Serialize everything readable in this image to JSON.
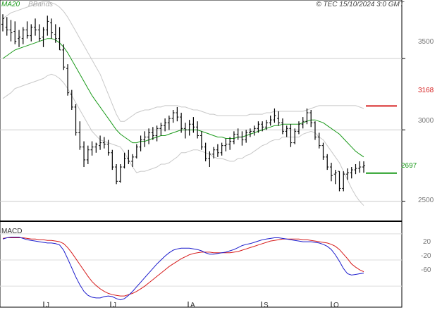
{
  "header": {
    "ma_label": "MA20",
    "bb_label": "BBands",
    "copyright": "© TEC 15/10/2024 3:0 GMT"
  },
  "chart_data": [
    {
      "type": "line",
      "title": "",
      "ylim": [
        2370,
        3900
      ],
      "y_ticks": [
        "3500",
        "3000",
        "2500"
      ],
      "x_tick_labels": [
        "J",
        "J",
        "A",
        "S",
        "O"
      ],
      "grid": true,
      "legend_position": "top-left",
      "levels": [
        {
          "label": "3168",
          "value": 3168,
          "color": "#d62020"
        },
        {
          "label": "2697",
          "value": 2697,
          "color": "#1a9a1a"
        }
      ],
      "price_bars": [
        [
          3740,
          3810,
          3690,
          3780
        ],
        [
          3720,
          3790,
          3660,
          3700
        ],
        [
          3700,
          3770,
          3620,
          3680
        ],
        [
          3690,
          3760,
          3600,
          3620
        ],
        [
          3640,
          3700,
          3580,
          3650
        ],
        [
          3640,
          3720,
          3600,
          3700
        ],
        [
          3700,
          3760,
          3640,
          3660
        ],
        [
          3660,
          3740,
          3620,
          3720
        ],
        [
          3720,
          3780,
          3660,
          3700
        ],
        [
          3700,
          3740,
          3620,
          3640
        ],
        [
          3650,
          3720,
          3580,
          3700
        ],
        [
          3700,
          3800,
          3660,
          3760
        ],
        [
          3750,
          3780,
          3640,
          3680
        ],
        [
          3670,
          3740,
          3610,
          3640
        ],
        [
          3640,
          3720,
          3560,
          3560
        ],
        [
          3560,
          3600,
          3420,
          3440
        ],
        [
          3430,
          3460,
          3240,
          3260
        ],
        [
          3250,
          3280,
          3140,
          3160
        ],
        [
          3160,
          3180,
          2960,
          2980
        ],
        [
          2980,
          3060,
          2860,
          2880
        ],
        [
          2880,
          2920,
          2740,
          2790
        ],
        [
          2790,
          2890,
          2760,
          2860
        ],
        [
          2860,
          2920,
          2820,
          2880
        ],
        [
          2880,
          2910,
          2840,
          2900
        ],
        [
          2890,
          2960,
          2860,
          2910
        ],
        [
          2910,
          2950,
          2870,
          2900
        ],
        [
          2900,
          2930,
          2820,
          2840
        ],
        [
          2840,
          2860,
          2720,
          2740
        ],
        [
          2740,
          2760,
          2620,
          2640
        ],
        [
          2640,
          2760,
          2630,
          2740
        ],
        [
          2740,
          2840,
          2730,
          2800
        ],
        [
          2800,
          2860,
          2760,
          2780
        ],
        [
          2780,
          2830,
          2740,
          2810
        ],
        [
          2810,
          2900,
          2800,
          2880
        ],
        [
          2880,
          2960,
          2850,
          2930
        ],
        [
          2930,
          2990,
          2880,
          2950
        ],
        [
          2950,
          3010,
          2900,
          2980
        ],
        [
          2980,
          3020,
          2930,
          2960
        ],
        [
          2960,
          3030,
          2920,
          3010
        ],
        [
          3010,
          3050,
          2960,
          3030
        ],
        [
          3030,
          3080,
          2990,
          3050
        ],
        [
          3050,
          3100,
          3000,
          3080
        ],
        [
          3080,
          3140,
          3050,
          3120
        ],
        [
          3120,
          3160,
          3060,
          3090
        ],
        [
          3090,
          3120,
          2980,
          3010
        ],
        [
          3010,
          3050,
          2940,
          3000
        ],
        [
          3000,
          3070,
          2960,
          3040
        ],
        [
          3040,
          3090,
          2980,
          3020
        ],
        [
          3020,
          3060,
          2940,
          2960
        ],
        [
          2960,
          2990,
          2860,
          2880
        ],
        [
          2880,
          2910,
          2780,
          2800
        ],
        [
          2800,
          2850,
          2740,
          2830
        ],
        [
          2830,
          2880,
          2800,
          2860
        ],
        [
          2860,
          2900,
          2810,
          2840
        ],
        [
          2840,
          2910,
          2820,
          2890
        ],
        [
          2890,
          2940,
          2850,
          2900
        ],
        [
          2900,
          2950,
          2860,
          2920
        ],
        [
          2920,
          2990,
          2900,
          2970
        ],
        [
          2970,
          3010,
          2930,
          2950
        ],
        [
          2950,
          2990,
          2890,
          2930
        ],
        [
          2930,
          3000,
          2910,
          2980
        ],
        [
          2980,
          3010,
          2950,
          2990
        ],
        [
          2990,
          3030,
          2960,
          3010
        ],
        [
          3010,
          3060,
          2980,
          3040
        ],
        [
          3040,
          3060,
          2990,
          3020
        ],
        [
          3020,
          3070,
          3000,
          3050
        ],
        [
          3050,
          3100,
          3030,
          3070
        ],
        [
          3070,
          3150,
          3050,
          3100
        ],
        [
          3080,
          3130,
          3030,
          3050
        ],
        [
          3050,
          3080,
          2970,
          2990
        ],
        [
          2990,
          3030,
          2950,
          3010
        ],
        [
          3010,
          3040,
          2880,
          2910
        ],
        [
          2910,
          3010,
          2900,
          2990
        ],
        [
          2990,
          3060,
          2970,
          3040
        ],
        [
          3040,
          3090,
          3010,
          3060
        ],
        [
          3060,
          3150,
          3040,
          3120
        ],
        [
          3120,
          3140,
          3020,
          3050
        ],
        [
          3050,
          3060,
          2930,
          2950
        ],
        [
          2950,
          2980,
          2870,
          2890
        ],
        [
          2890,
          2910,
          2790,
          2810
        ],
        [
          2810,
          2830,
          2720,
          2740
        ],
        [
          2740,
          2770,
          2640,
          2680
        ],
        [
          2690,
          2720,
          2620,
          2700
        ],
        [
          2710,
          2710,
          2570,
          2590
        ],
        [
          2590,
          2710,
          2570,
          2690
        ],
        [
          2690,
          2730,
          2650,
          2700
        ],
        [
          2700,
          2740,
          2660,
          2720
        ],
        [
          2720,
          2760,
          2690,
          2730
        ],
        [
          2730,
          2780,
          2700,
          2740
        ],
        [
          2740,
          2780,
          2700,
          2750
        ]
      ],
      "ma20": [
        3500,
        3520,
        3540,
        3560,
        3570,
        3580,
        3590,
        3600,
        3610,
        3620,
        3630,
        3640,
        3640,
        3630,
        3610,
        3580,
        3540,
        3490,
        3440,
        3390,
        3340,
        3290,
        3240,
        3200,
        3160,
        3120,
        3080,
        3040,
        3000,
        2970,
        2950,
        2930,
        2910,
        2910,
        2920,
        2920,
        2930,
        2940,
        2950,
        2960,
        2960,
        2970,
        2980,
        2990,
        3000,
        3000,
        3000,
        3000,
        3000,
        2990,
        2980,
        2970,
        2960,
        2950,
        2950,
        2940,
        2940,
        2940,
        2950,
        2950,
        2960,
        2970,
        2980,
        2990,
        3000,
        3010,
        3020,
        3030,
        3030,
        3040,
        3040,
        3040,
        3040,
        3040,
        3050,
        3060,
        3070,
        3070,
        3060,
        3050,
        3030,
        3010,
        2990,
        2970,
        2940,
        2910,
        2880,
        2850,
        2830,
        2810
      ],
      "bb_upper": [
        3780,
        3800,
        3820,
        3830,
        3840,
        3850,
        3860,
        3870,
        3880,
        3890,
        3900,
        3900,
        3890,
        3880,
        3860,
        3830,
        3790,
        3740,
        3690,
        3640,
        3590,
        3540,
        3490,
        3440,
        3390,
        3320,
        3250,
        3180,
        3110,
        3060,
        3060,
        3080,
        3100,
        3120,
        3130,
        3140,
        3140,
        3150,
        3160,
        3160,
        3170,
        3170,
        3170,
        3170,
        3160,
        3160,
        3150,
        3140,
        3140,
        3130,
        3120,
        3110,
        3110,
        3100,
        3100,
        3100,
        3100,
        3100,
        3100,
        3100,
        3100,
        3110,
        3110,
        3110,
        3110,
        3120,
        3120,
        3130,
        3130,
        3130,
        3130,
        3130,
        3130,
        3130,
        3130,
        3140,
        3150,
        3160,
        3170,
        3170,
        3170,
        3170,
        3170,
        3170,
        3170,
        3170,
        3170,
        3170,
        3160,
        3150
      ],
      "bb_lower": [
        3220,
        3240,
        3260,
        3290,
        3300,
        3310,
        3320,
        3330,
        3340,
        3350,
        3360,
        3380,
        3390,
        3380,
        3360,
        3330,
        3290,
        3240,
        3190,
        3140,
        3090,
        3040,
        2990,
        2960,
        2930,
        2920,
        2910,
        2900,
        2890,
        2880,
        2840,
        2790,
        2740,
        2700,
        2710,
        2710,
        2720,
        2730,
        2740,
        2760,
        2760,
        2770,
        2790,
        2810,
        2840,
        2840,
        2850,
        2860,
        2860,
        2850,
        2840,
        2830,
        2810,
        2800,
        2800,
        2790,
        2780,
        2780,
        2800,
        2800,
        2820,
        2830,
        2850,
        2870,
        2890,
        2900,
        2920,
        2930,
        2930,
        2950,
        2950,
        2950,
        2950,
        2950,
        2970,
        2980,
        2990,
        2980,
        2950,
        2930,
        2890,
        2850,
        2810,
        2770,
        2710,
        2650,
        2590,
        2540,
        2500,
        2470
      ],
      "macd": {
        "y_ticks": [
          "20",
          "-20",
          "-60"
        ],
        "ylim": [
          -90,
          35
        ],
        "macd_line": [
          12,
          14,
          15,
          15,
          15,
          13,
          11,
          10,
          9,
          8,
          7,
          6,
          6,
          5,
          3,
          -5,
          -18,
          -32,
          -46,
          -58,
          -68,
          -74,
          -77,
          -78,
          -78,
          -76,
          -75,
          -76,
          -79,
          -81,
          -79,
          -74,
          -68,
          -61,
          -54,
          -47,
          -40,
          -33,
          -26,
          -20,
          -14,
          -9,
          -5,
          -3,
          -2,
          -2,
          -2,
          -3,
          -4,
          -6,
          -9,
          -11,
          -11,
          -10,
          -9,
          -8,
          -6,
          -4,
          -1,
          2,
          4,
          5,
          7,
          9,
          11,
          12,
          13,
          14,
          14,
          13,
          12,
          11,
          10,
          9,
          8,
          8,
          8,
          7,
          6,
          4,
          1,
          -4,
          -12,
          -22,
          -33,
          -41,
          -43,
          -42,
          -41,
          -40
        ],
        "signal_line": [
          13,
          14,
          14,
          14,
          14,
          14,
          13,
          12,
          12,
          11,
          11,
          10,
          10,
          9,
          8,
          5,
          -1,
          -9,
          -18,
          -27,
          -36,
          -45,
          -53,
          -59,
          -64,
          -68,
          -71,
          -73,
          -74,
          -75,
          -75,
          -73,
          -71,
          -68,
          -64,
          -60,
          -55,
          -50,
          -45,
          -40,
          -35,
          -30,
          -26,
          -22,
          -18,
          -15,
          -12,
          -10,
          -9,
          -8,
          -8,
          -8,
          -9,
          -9,
          -9,
          -9,
          -9,
          -8,
          -7,
          -5,
          -3,
          -1,
          1,
          3,
          5,
          7,
          9,
          10,
          11,
          12,
          12,
          12,
          12,
          12,
          11,
          11,
          10,
          9,
          8,
          7,
          6,
          4,
          1,
          -4,
          -11,
          -18,
          -26,
          -31,
          -35,
          -38
        ]
      }
    }
  ]
}
